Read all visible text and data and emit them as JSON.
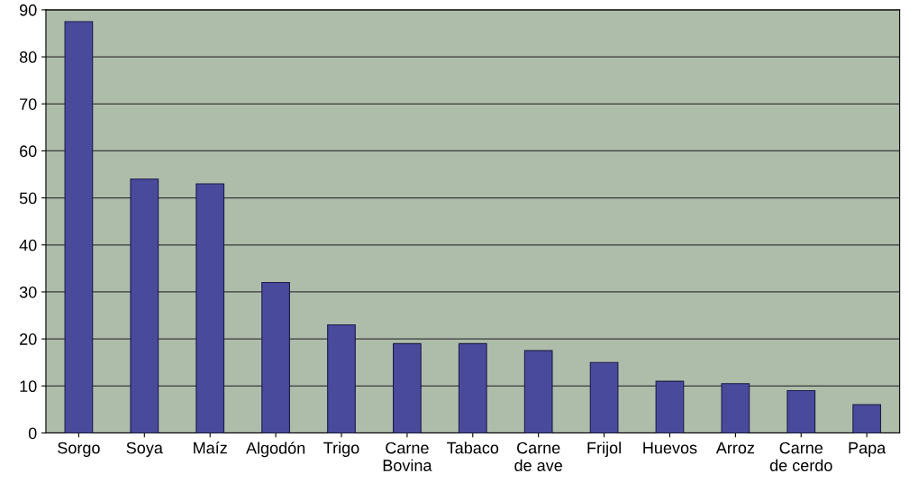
{
  "chart_data": {
    "type": "bar",
    "categories": [
      "Sorgo",
      "Soya",
      "Maíz",
      "Algodón",
      "Trigo",
      "Carne\nBovina",
      "Tabaco",
      "Carne\nde ave",
      "Frijol",
      "Huevos",
      "Arroz",
      "Carne\nde cerdo",
      "Papa"
    ],
    "values": [
      87.5,
      54,
      53,
      32,
      23,
      19,
      19,
      17.5,
      15,
      11,
      10.5,
      9,
      6
    ],
    "color": "#4a4a9c",
    "ylim": [
      0,
      90
    ],
    "yticks": [
      0,
      10,
      20,
      30,
      40,
      50,
      60,
      70,
      80,
      90
    ],
    "grid": "y"
  }
}
